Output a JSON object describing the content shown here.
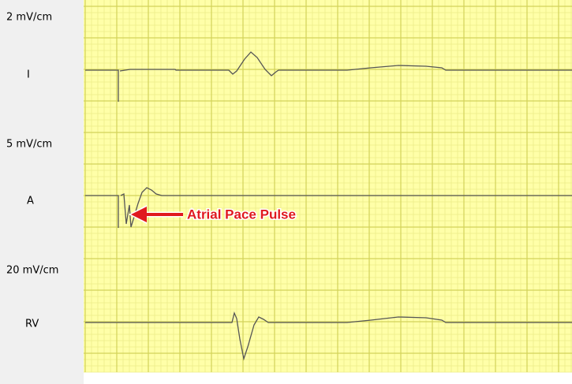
{
  "channels": [
    {
      "scale": "2 mV/cm",
      "name": "I"
    },
    {
      "scale": "5 mV/cm",
      "name": "A"
    },
    {
      "scale": "20 mV/cm",
      "name": "RV"
    }
  ],
  "annotation": "Atrial Pace Pulse"
}
